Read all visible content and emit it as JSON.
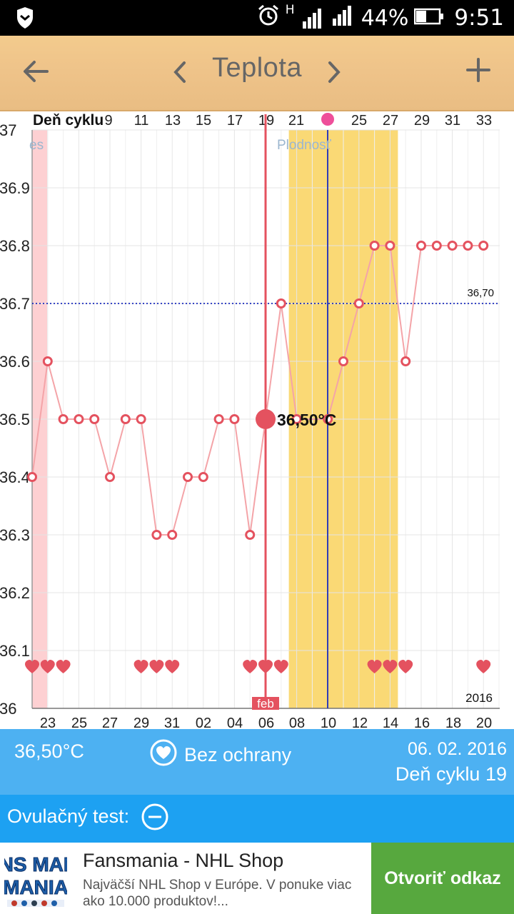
{
  "status_bar": {
    "battery": "44%",
    "time": "9:51",
    "network_letter": "H"
  },
  "header": {
    "title": "Teplota"
  },
  "chart_data": {
    "type": "line",
    "top_axis_label": "Deň cyklu",
    "top_ticks": [
      "9",
      "11",
      "13",
      "15",
      "17",
      "19",
      "21",
      "25",
      "27",
      "29",
      "31",
      "33"
    ],
    "y_ticks": [
      "37",
      "36.9",
      "36.8",
      "36.7",
      "36.6",
      "36.5",
      "36.4",
      "36.3",
      "36.2",
      "36.1",
      "36"
    ],
    "ylim": [
      36.0,
      37.0
    ],
    "bottom_ticks": [
      "23",
      "25",
      "27",
      "29",
      "31",
      "02",
      "04",
      "06",
      "08",
      "10",
      "12",
      "14",
      "16",
      "18",
      "20"
    ],
    "month_label": "feb",
    "year_label": "2016",
    "fertile_label": "Plodnosť",
    "period_label": "es",
    "threshold": {
      "value": 36.7,
      "label": "36,70"
    },
    "selected": {
      "day": 19,
      "value": 36.5,
      "label": "36,50°C"
    },
    "ovulation_day": 23,
    "period_days": [
      1
    ],
    "fertile_days": [
      18,
      24
    ],
    "x_range": [
      1,
      31
    ],
    "points": [
      {
        "d": 1,
        "t": 36.4
      },
      {
        "d": 2,
        "t": 36.6
      },
      {
        "d": 3,
        "t": 36.5
      },
      {
        "d": 4,
        "t": 36.5
      },
      {
        "d": 5,
        "t": 36.5
      },
      {
        "d": 6,
        "t": 36.4
      },
      {
        "d": 7,
        "t": 36.5
      },
      {
        "d": 8,
        "t": 36.5
      },
      {
        "d": 9,
        "t": 36.3
      },
      {
        "d": 10,
        "t": 36.3
      },
      {
        "d": 11,
        "t": 36.4
      },
      {
        "d": 12,
        "t": 36.4
      },
      {
        "d": 13,
        "t": 36.5
      },
      {
        "d": 14,
        "t": 36.5
      },
      {
        "d": 15,
        "t": 36.3
      },
      {
        "d": 17,
        "t": 36.7
      },
      {
        "d": 18,
        "t": 36.5
      },
      {
        "d": 19,
        "t": 36.5
      },
      {
        "d": 20,
        "t": 36.5
      },
      {
        "d": 21,
        "t": 36.6
      },
      {
        "d": 22,
        "t": 36.7
      },
      {
        "d": 23,
        "t": 36.8
      },
      {
        "d": 24,
        "t": 36.8
      },
      {
        "d": 25,
        "t": 36.6
      },
      {
        "d": 26,
        "t": 36.8
      },
      {
        "d": 27,
        "t": 36.8
      },
      {
        "d": 28,
        "t": 36.8
      },
      {
        "d": 29,
        "t": 36.8
      },
      {
        "d": 30,
        "t": 36.8
      }
    ],
    "heart_days": [
      1,
      2,
      3,
      8,
      9,
      10,
      15,
      16,
      17,
      23,
      24,
      25,
      30
    ]
  },
  "info": {
    "temperature": "36,50°C",
    "protection": "Bez ochrany",
    "date": "06. 02. 2016",
    "cycle_day": "Deň cyklu 19"
  },
  "ovulation": {
    "label": "Ovulačný test:"
  },
  "ad": {
    "logo_text": "FANS MANIA",
    "title": "Fansmania - NHL Shop",
    "description": "Najväčší NHL Shop v Európe. V ponuke viac ako 10.000 produktov!...",
    "cta": "Otvoriť odkaz"
  },
  "colors": {
    "accent_red": "#e4525f",
    "fertile_yellow": "#fad975",
    "period_pink": "#fdd0d2",
    "info_blue": "#4db1f2",
    "ovu_blue": "#1da1f2",
    "ad_green": "#57a83e"
  }
}
